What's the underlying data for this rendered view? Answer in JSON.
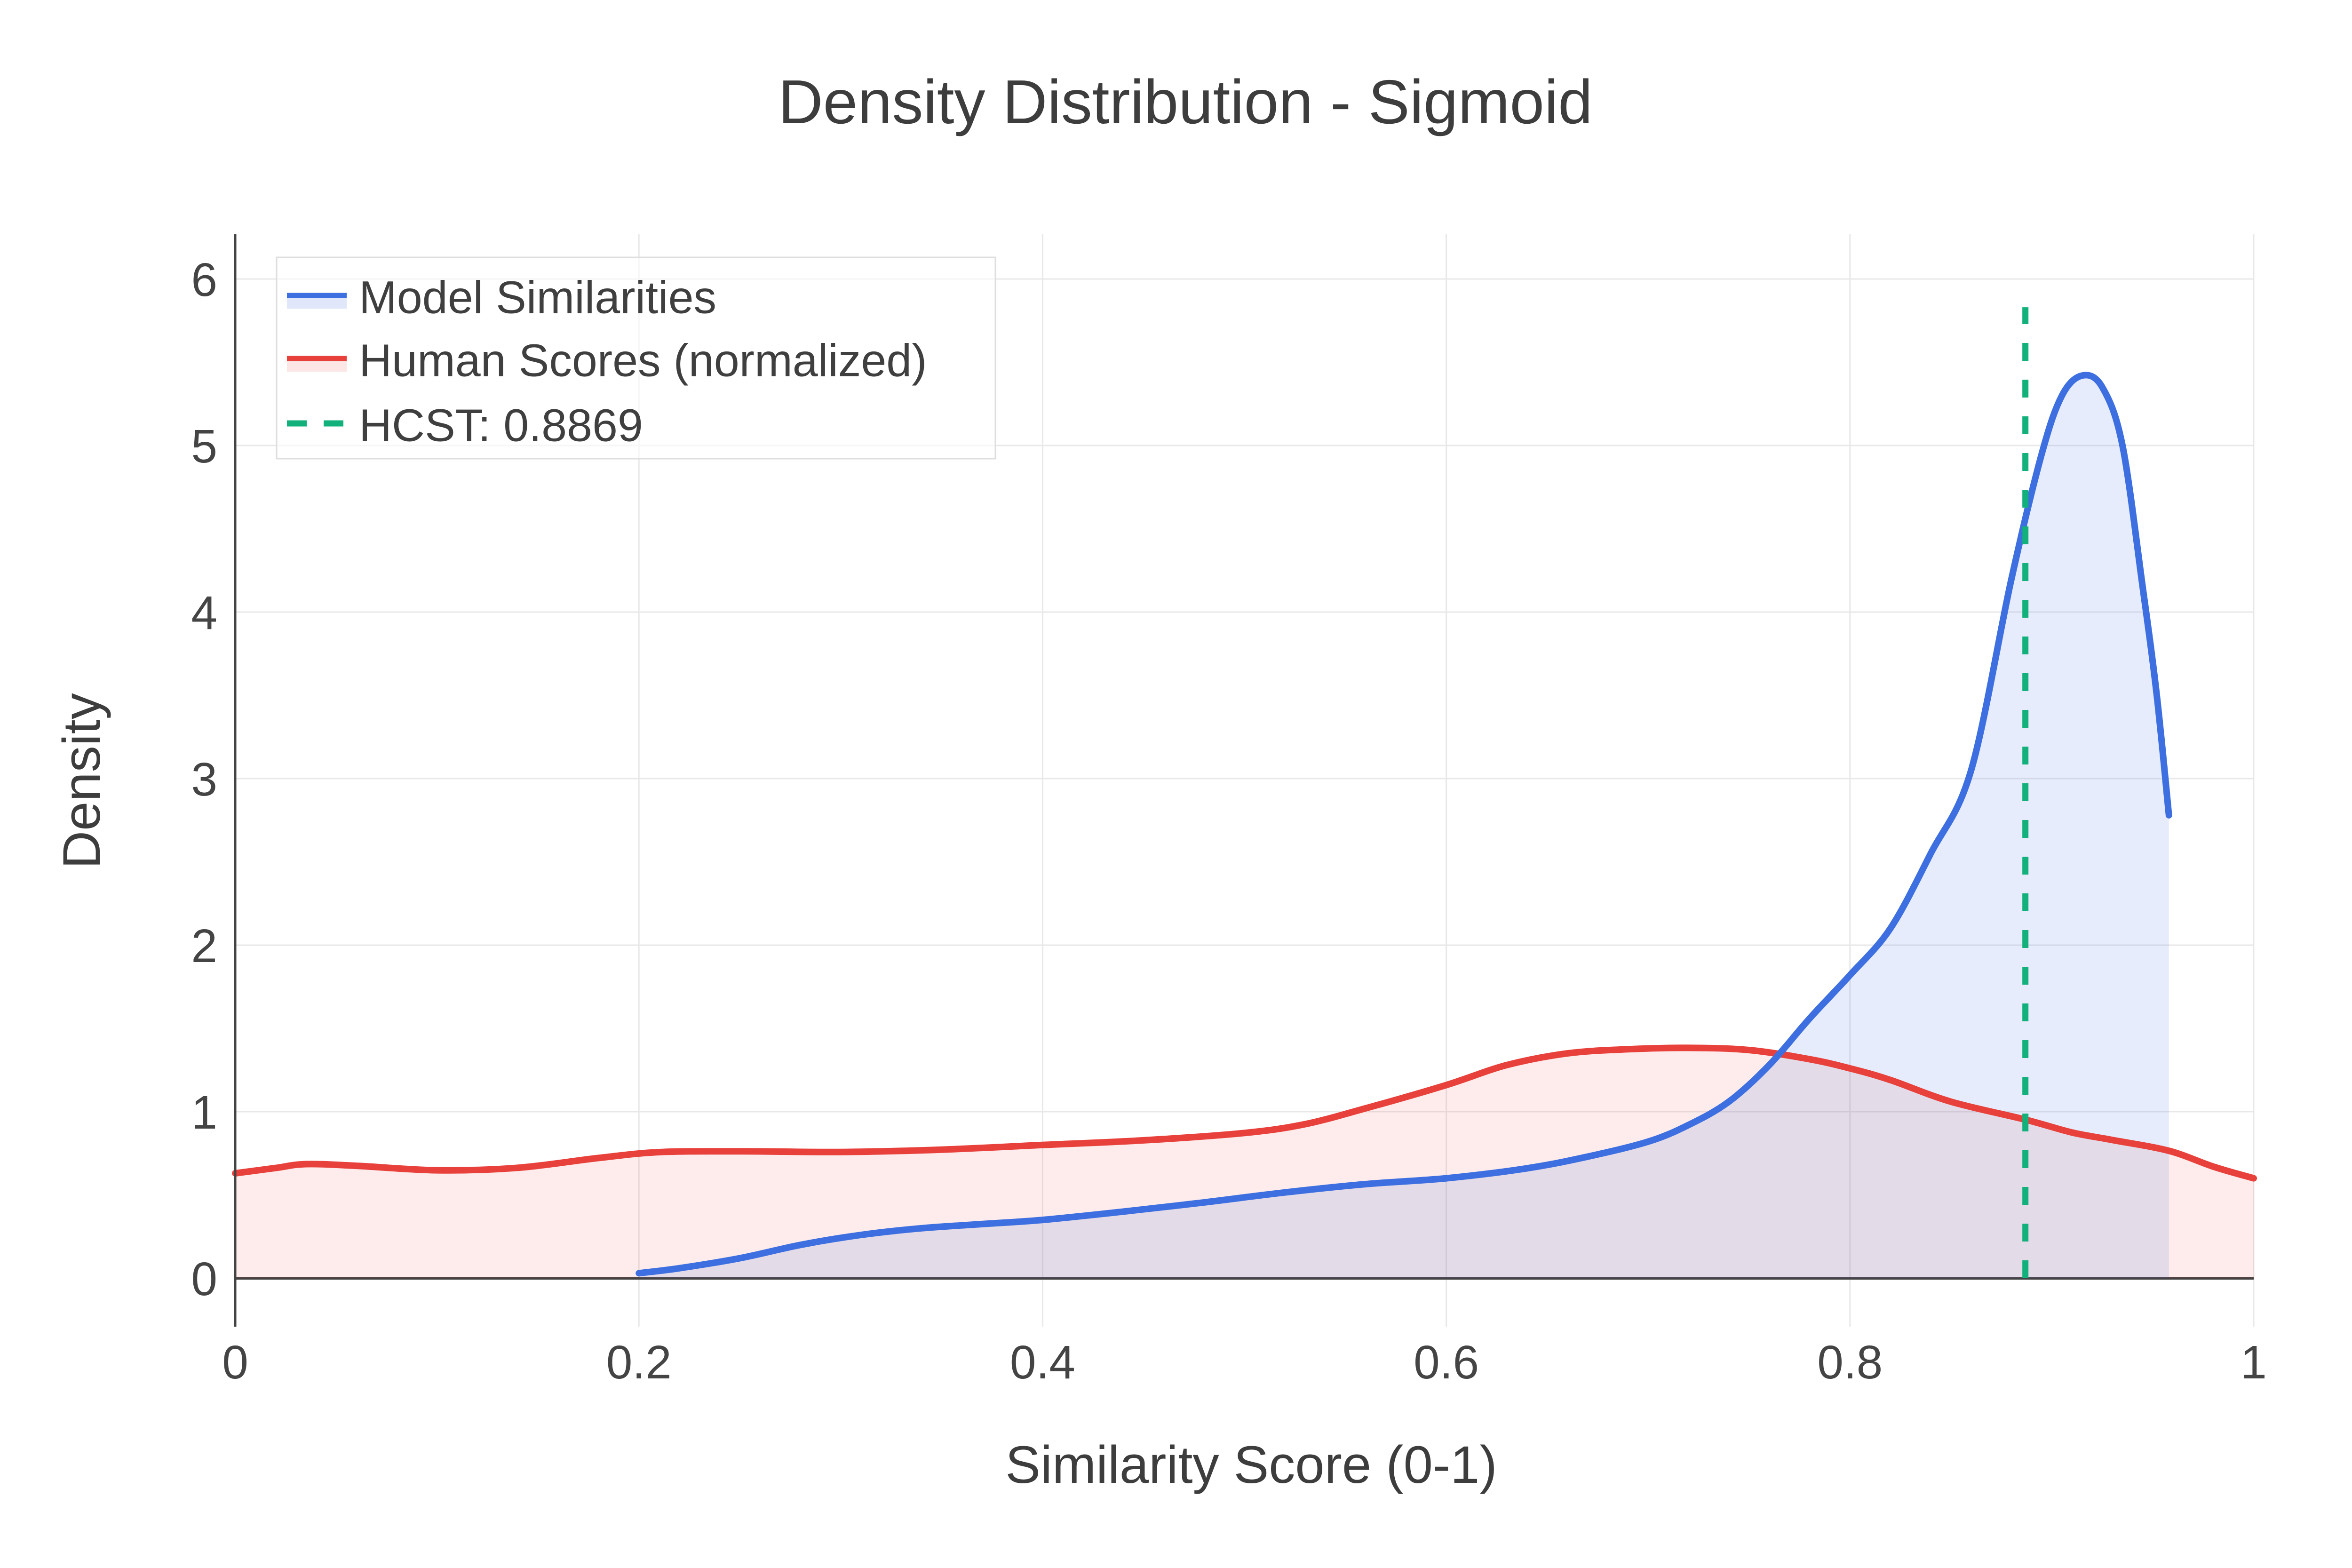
{
  "title": "Density Distribution - Sigmoid",
  "axes": {
    "x_label": "Similarity Score (0-1)",
    "y_label": "Density",
    "x_ticks": [
      {
        "v": 0.0,
        "label": "0"
      },
      {
        "v": 0.2,
        "label": "0.2"
      },
      {
        "v": 0.4,
        "label": "0.4"
      },
      {
        "v": 0.6,
        "label": "0.6"
      },
      {
        "v": 0.8,
        "label": "0.8"
      },
      {
        "v": 1.0,
        "label": "1"
      }
    ],
    "y_ticks": [
      {
        "v": 0,
        "label": "0"
      },
      {
        "v": 1,
        "label": "1"
      },
      {
        "v": 2,
        "label": "2"
      },
      {
        "v": 3,
        "label": "3"
      },
      {
        "v": 4,
        "label": "4"
      },
      {
        "v": 5,
        "label": "5"
      },
      {
        "v": 6,
        "label": "6"
      }
    ]
  },
  "legend": {
    "items": [
      {
        "label": "Model Similarities",
        "kind": "area",
        "color": "#3d6fe0",
        "fill": "rgba(65,105,225,0.16)"
      },
      {
        "label": "Human Scores (normalized)",
        "kind": "area",
        "color": "#e8413c",
        "fill": "rgba(231,64,60,0.13)"
      },
      {
        "label": "HCST: 0.8869",
        "kind": "dash",
        "color": "#12b07a"
      }
    ]
  },
  "colors": {
    "model_line": "#3d6fe0",
    "model_fill": "rgba(65,105,225,0.13)",
    "human_line": "#e8413c",
    "human_fill": "rgba(231,64,60,0.10)",
    "hcst_line": "#12b07a",
    "grid": "#e8e8e8",
    "axis": "#444444",
    "text": "#3d3d3d",
    "legend_border": "#dedede",
    "legend_bg": "rgba(255,255,255,0.6)"
  },
  "chart_data": {
    "type": "area",
    "title": "Density Distribution - Sigmoid",
    "xlabel": "Similarity Score (0-1)",
    "ylabel": "Density",
    "x_range": [
      0,
      1
    ],
    "y_range": [
      -0.29,
      6.27
    ],
    "grid": true,
    "legend_position": "top-left",
    "series": [
      {
        "name": "Model Similarities",
        "color": "#3d6fe0",
        "fill": "rgba(65,105,225,0.13)",
        "line_width": 14,
        "x": [
          0.2,
          0.22,
          0.25,
          0.28,
          0.31,
          0.34,
          0.37,
          0.4,
          0.44,
          0.48,
          0.52,
          0.56,
          0.6,
          0.64,
          0.67,
          0.7,
          0.72,
          0.74,
          0.76,
          0.78,
          0.8,
          0.82,
          0.84,
          0.86,
          0.88,
          0.895,
          0.905,
          0.915,
          0.925,
          0.935,
          0.945,
          0.952,
          0.958
        ],
        "y": [
          0.03,
          0.06,
          0.12,
          0.2,
          0.26,
          0.3,
          0.325,
          0.35,
          0.4,
          0.455,
          0.515,
          0.565,
          0.6,
          0.66,
          0.73,
          0.82,
          0.92,
          1.06,
          1.28,
          1.56,
          1.82,
          2.1,
          2.55,
          3.05,
          4.2,
          4.95,
          5.3,
          5.42,
          5.35,
          5.0,
          4.15,
          3.5,
          2.78
        ]
      },
      {
        "name": "Human Scores (normalized)",
        "color": "#e8413c",
        "fill": "rgba(231,64,60,0.10)",
        "line_width": 14,
        "x": [
          0.0,
          0.02,
          0.035,
          0.06,
          0.1,
          0.14,
          0.18,
          0.21,
          0.25,
          0.3,
          0.35,
          0.4,
          0.45,
          0.5,
          0.53,
          0.56,
          0.6,
          0.63,
          0.66,
          0.69,
          0.72,
          0.75,
          0.78,
          0.8,
          0.82,
          0.85,
          0.887,
          0.91,
          0.93,
          0.958,
          0.98,
          1.0
        ],
        "y": [
          0.63,
          0.662,
          0.685,
          0.675,
          0.648,
          0.663,
          0.722,
          0.757,
          0.762,
          0.758,
          0.772,
          0.8,
          0.828,
          0.872,
          0.925,
          1.02,
          1.16,
          1.28,
          1.35,
          1.375,
          1.383,
          1.37,
          1.315,
          1.26,
          1.19,
          1.06,
          0.952,
          0.875,
          0.83,
          0.765,
          0.67,
          0.6
        ]
      }
    ],
    "vline": {
      "name": "HCST",
      "label": "HCST: 0.8869",
      "value": 0.8869,
      "y_top": 5.83,
      "color": "#12b07a",
      "style": "dashed",
      "line_width": 13,
      "dash": [
        38,
        40
      ]
    }
  }
}
